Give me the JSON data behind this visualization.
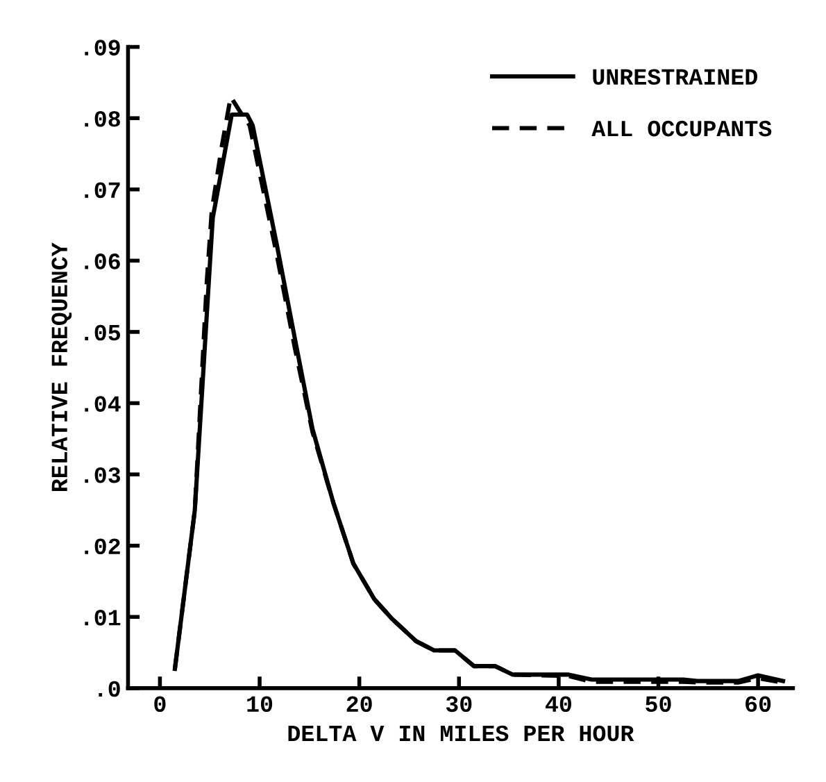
{
  "chart_data": {
    "type": "line",
    "xlabel": "DELTA V IN MILES PER HOUR",
    "ylabel": "RELATIVE FREQUENCY",
    "xlim": [
      -3.2,
      63.5
    ],
    "ylim": [
      0,
      0.09
    ],
    "xticks": [
      0,
      10,
      20,
      30,
      40,
      50,
      60
    ],
    "yticks": [
      {
        "value": 0,
        "label": ".0"
      },
      {
        "value": 0.01,
        "label": ".01"
      },
      {
        "value": 0.02,
        "label": ".02"
      },
      {
        "value": 0.03,
        "label": ".03"
      },
      {
        "value": 0.04,
        "label": ".04"
      },
      {
        "value": 0.05,
        "label": ".05"
      },
      {
        "value": 0.06,
        "label": ".06"
      },
      {
        "value": 0.07,
        "label": ".07"
      },
      {
        "value": 0.08,
        "label": ".08"
      },
      {
        "value": 0.09,
        "label": ".09"
      }
    ],
    "grid": false,
    "legend": "top right",
    "marker": "none",
    "series": [
      {
        "name": "UNRESTRAINED",
        "color": "#000000",
        "line_style": "solid",
        "x": [
          1.5,
          3.5,
          4.9,
          5.3,
          7.2,
          8.75,
          9.3,
          11.8,
          13.6,
          15.3,
          17.4,
          19.4,
          21.5,
          23.3,
          25.7,
          27.5,
          29.6,
          31.5,
          33.6,
          35.4,
          41,
          43.3,
          52.5,
          53.9,
          58,
          60,
          62.5
        ],
        "values": [
          0.0027,
          0.025,
          0.057,
          0.066,
          0.0805,
          0.0805,
          0.079,
          0.0617,
          0.0486,
          0.0364,
          0.026,
          0.0175,
          0.0125,
          0.0097,
          0.0066,
          0.0053,
          0.0053,
          0.0031,
          0.0031,
          0.0019,
          0.0019,
          0.0012,
          0.0012,
          0.001,
          0.001,
          0.0018,
          0.001
        ]
      },
      {
        "name": "ALL OCCUPANTS",
        "color": "#000000",
        "line_style": "dashed",
        "x": [
          1.5,
          3.5,
          4.7,
          5.2,
          6.2,
          7.1,
          8.0,
          9.0,
          11.7,
          13.5,
          15.3,
          17.4,
          19.4,
          21.5,
          23.3,
          25.7,
          27.5,
          29.6,
          31.5,
          33.6,
          35.4,
          41,
          43.3,
          52.5,
          53.9,
          58,
          60,
          62.5
        ],
        "values": [
          0.0027,
          0.025,
          0.057,
          0.067,
          0.076,
          0.083,
          0.081,
          0.079,
          0.061,
          0.048,
          0.036,
          0.026,
          0.0175,
          0.0125,
          0.0097,
          0.0066,
          0.0053,
          0.0053,
          0.0031,
          0.0031,
          0.0019,
          0.0017,
          0.0009,
          0.0009,
          0.0008,
          0.0008,
          0.0014,
          0.0008
        ]
      }
    ]
  }
}
